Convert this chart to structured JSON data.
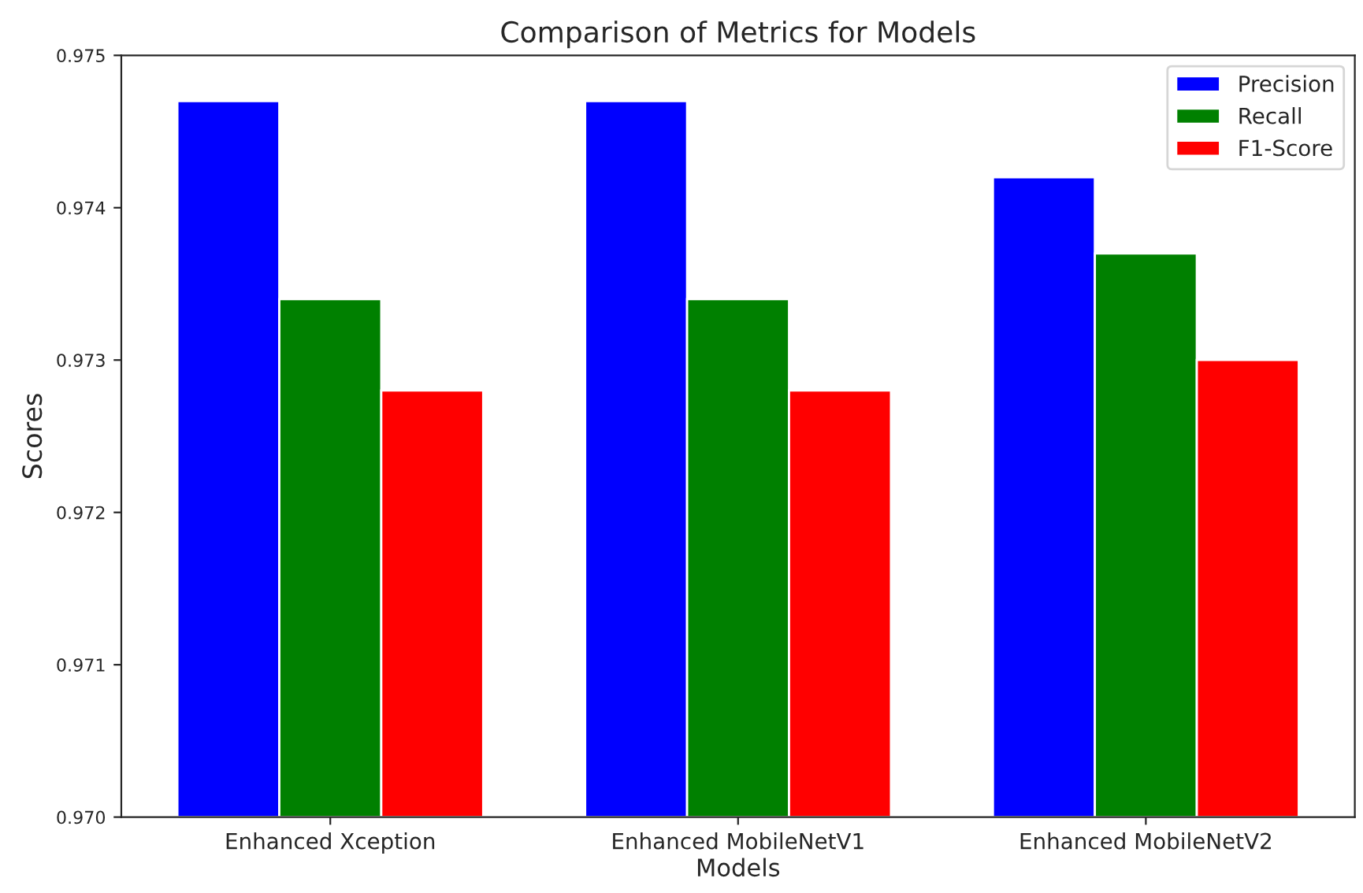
{
  "chart_data": {
    "type": "bar",
    "title": "Comparison of Metrics for Models",
    "xlabel": "Models",
    "ylabel": "Scores",
    "categories": [
      "Enhanced Xception",
      "Enhanced MobileNetV1",
      "Enhanced MobileNetV2"
    ],
    "series": [
      {
        "name": "Precision",
        "color": "#0000ff",
        "values": [
          0.9747,
          0.9747,
          0.9742
        ]
      },
      {
        "name": "Recall",
        "color": "#008000",
        "values": [
          0.9734,
          0.9734,
          0.9737
        ]
      },
      {
        "name": "F1-Score",
        "color": "#ff0000",
        "values": [
          0.9728,
          0.9728,
          0.973
        ]
      }
    ],
    "ylim": [
      0.97,
      0.975
    ],
    "yticks": [
      {
        "value": 0.97,
        "label": "0.970"
      },
      {
        "value": 0.971,
        "label": "0.971"
      },
      {
        "value": 0.972,
        "label": "0.972"
      },
      {
        "value": 0.973,
        "label": "0.973"
      },
      {
        "value": 0.974,
        "label": "0.974"
      },
      {
        "value": 0.975,
        "label": "0.975"
      }
    ],
    "legend": "top right",
    "grid": false
  }
}
